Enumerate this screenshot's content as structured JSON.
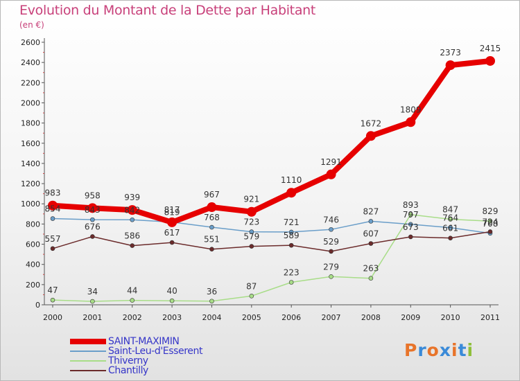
{
  "header": {
    "title": "Evolution du Montant de la Dette par Habitant",
    "unit": "(en €)"
  },
  "logo": {
    "letters": [
      "P",
      "r",
      "o",
      "x",
      "i",
      "t",
      "i"
    ],
    "colors": [
      "#e8742a",
      "#3a8ad8",
      "#e8742a",
      "#3a8ad8",
      "#e8742a",
      "#3a8ad8",
      "#8fbf3a"
    ]
  },
  "chart_data": {
    "type": "line",
    "title": "Evolution du Montant de la Dette par Habitant",
    "ylabel": "(en €)",
    "xlabel": "",
    "x": [
      "2000",
      "2001",
      "2002",
      "2003",
      "2004",
      "2005",
      "2006",
      "2007",
      "2008",
      "2009",
      "2010",
      "2011"
    ],
    "ylim": [
      0,
      2600
    ],
    "yticks": [
      0,
      200,
      400,
      600,
      800,
      1000,
      1200,
      1400,
      1600,
      1800,
      2000,
      2200,
      2400,
      2600
    ],
    "grid": false,
    "legend": "bottom-left",
    "series": [
      {
        "name": "SAINT-MAXIMIN",
        "color": "#e60000",
        "width": 8,
        "marker": 7,
        "values": [
          983,
          958,
          939,
          817,
          967,
          921,
          1110,
          1291,
          1672,
          1809,
          2373,
          2415
        ],
        "labels": [
          "983",
          "958",
          "939",
          "817",
          "967",
          "921",
          "1110",
          "1291",
          "1672",
          "1809",
          "2373",
          "2415"
        ]
      },
      {
        "name": "Saint-Leu-d'Esserent",
        "color": "#6a9ec9",
        "width": 1.5,
        "marker": 3,
        "values": [
          854,
          843,
          842,
          819,
          768,
          723,
          721,
          746,
          827,
          797,
          764,
          708
        ],
        "labels": [
          "854",
          "843",
          "842",
          "819",
          "768",
          "723",
          "721",
          "746",
          "827",
          "797",
          "764",
          "708"
        ]
      },
      {
        "name": "Thiverny",
        "color": "#a8dd88",
        "width": 1.5,
        "marker": 3,
        "values": [
          47,
          34,
          44,
          40,
          36,
          87,
          223,
          279,
          263,
          893,
          847,
          829
        ],
        "labels": [
          "47",
          "34",
          "44",
          "40",
          "36",
          "87",
          "223",
          "279",
          "263",
          "893",
          "847",
          "829"
        ]
      },
      {
        "name": "Chantilly",
        "color": "#6b2b2b",
        "width": 1.5,
        "marker": 3,
        "values": [
          557,
          676,
          586,
          617,
          551,
          579,
          589,
          529,
          607,
          673,
          661,
          724
        ],
        "labels": [
          "557",
          "676",
          "586",
          "617",
          "551",
          "579",
          "589",
          "529",
          "607",
          "673",
          "661",
          "724"
        ]
      }
    ]
  }
}
